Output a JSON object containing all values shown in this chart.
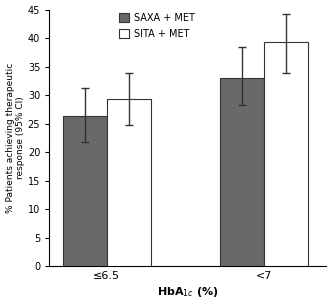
{
  "groups": [
    "≤6.5",
    "<7"
  ],
  "saxa_values": [
    26.3,
    33.0
  ],
  "sita_values": [
    29.3,
    39.3
  ],
  "saxa_errors_low": [
    4.5,
    4.8
  ],
  "saxa_errors_high": [
    5.0,
    5.5
  ],
  "sita_errors_low": [
    4.5,
    5.5
  ],
  "sita_errors_high": [
    4.5,
    5.0
  ],
  "saxa_color": "#696969",
  "sita_color": "#ffffff",
  "bar_edge_color": "#333333",
  "error_color": "#333333",
  "ylabel": "% Patients achieving therapeutic\nresponse (95% CI)",
  "xlabel": "HbA$_{1c}$ (%)",
  "ylim": [
    0,
    45
  ],
  "yticks": [
    0,
    5,
    10,
    15,
    20,
    25,
    30,
    35,
    40,
    45
  ],
  "legend_saxa": "SAXA + MET",
  "legend_sita": "SITA + MET",
  "bar_width": 0.42,
  "group_positions": [
    0.75,
    2.25
  ],
  "background_color": "#ffffff"
}
